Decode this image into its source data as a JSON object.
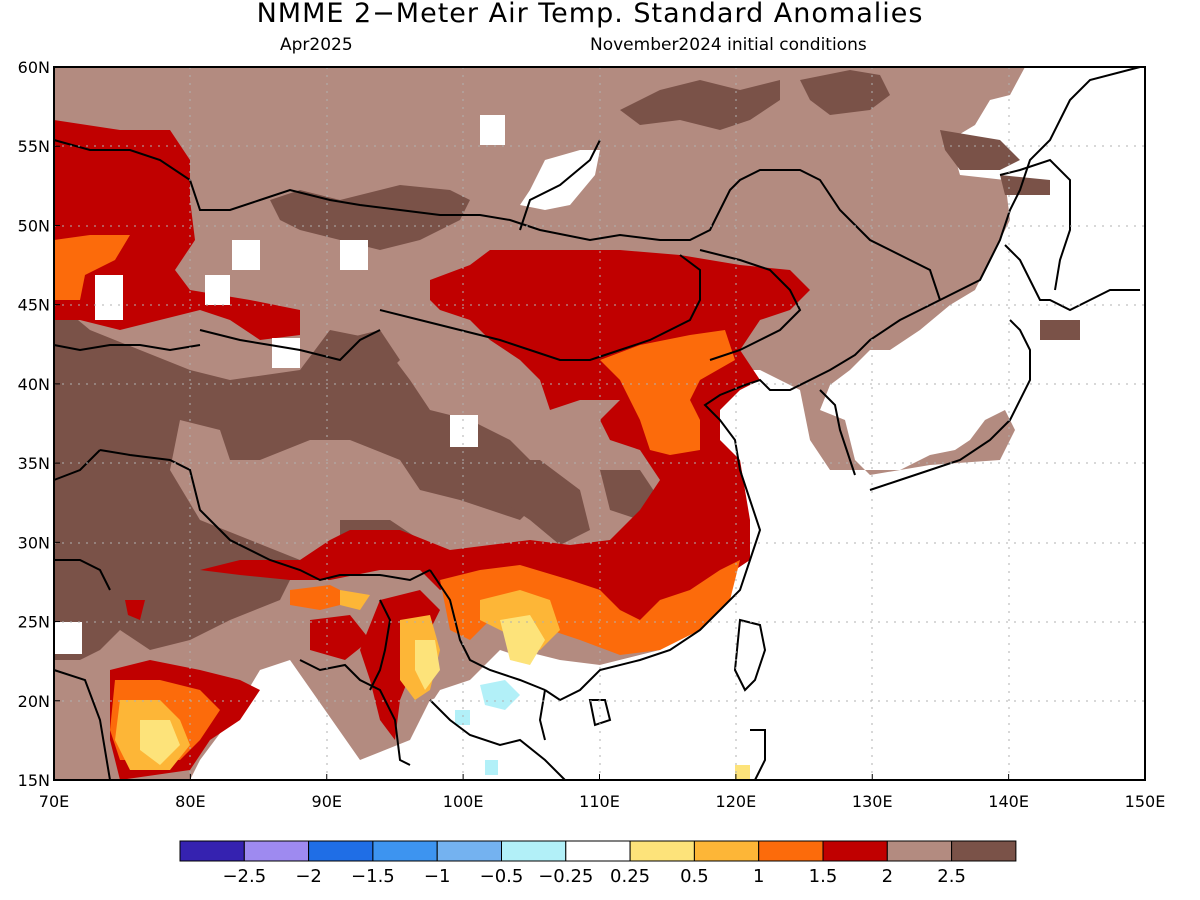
{
  "title": "NMME 2−Meter Air Temp. Standard Anomalies",
  "subtitle_left": "Apr2025",
  "subtitle_right": "November2024 initial conditions",
  "map": {
    "lon_range": [
      70,
      150
    ],
    "lat_range": [
      15,
      60
    ],
    "x_ticks": [
      "70E",
      "80E",
      "90E",
      "100E",
      "110E",
      "120E",
      "130E",
      "140E",
      "150E"
    ],
    "y_ticks": [
      "15N",
      "20N",
      "25N",
      "30N",
      "35N",
      "40N",
      "45N",
      "50N",
      "55N",
      "60N"
    ],
    "grid": "dotted"
  },
  "colorbar": {
    "colors": [
      "#3522b0",
      "#9e8af0",
      "#1f6ee6",
      "#3d94f0",
      "#74b2f0",
      "#b2f0f8",
      "#ffffff",
      "#fde37a",
      "#fdb637",
      "#fc6b0b",
      "#c00000",
      "#b38b80",
      "#7a5248"
    ],
    "labels": [
      "−2.5",
      "−2",
      "−1.5",
      "−1",
      "−0.5",
      "−0.25",
      "0.25",
      "0.5",
      "1",
      "1.5",
      "2",
      "2.5"
    ]
  }
}
